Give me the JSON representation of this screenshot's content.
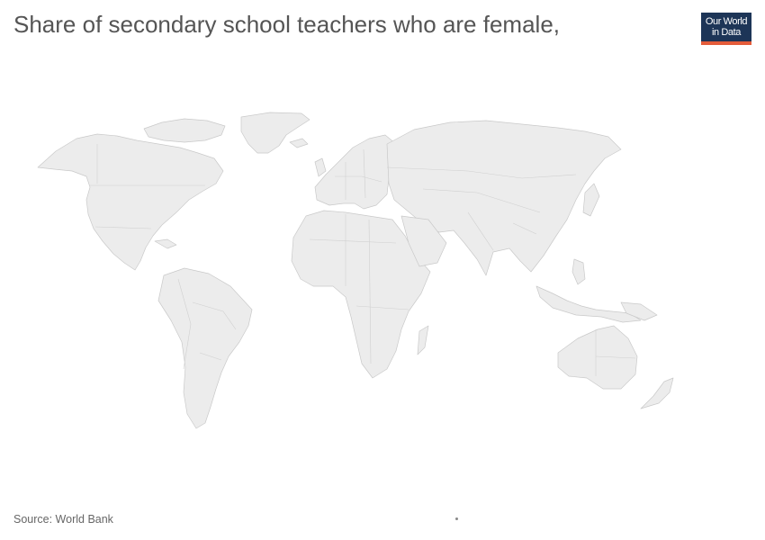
{
  "title": "Share of secondary school teachers who are female,",
  "logo": {
    "line1": "Our World",
    "line2": "in Data",
    "background_color": "#1d3557",
    "accent_color": "#e45c3a"
  },
  "source": "Source: World Bank",
  "map": {
    "land_color": "#ececec",
    "border_color": "#c9c9c9"
  },
  "timeline_dot_color": "#888888"
}
